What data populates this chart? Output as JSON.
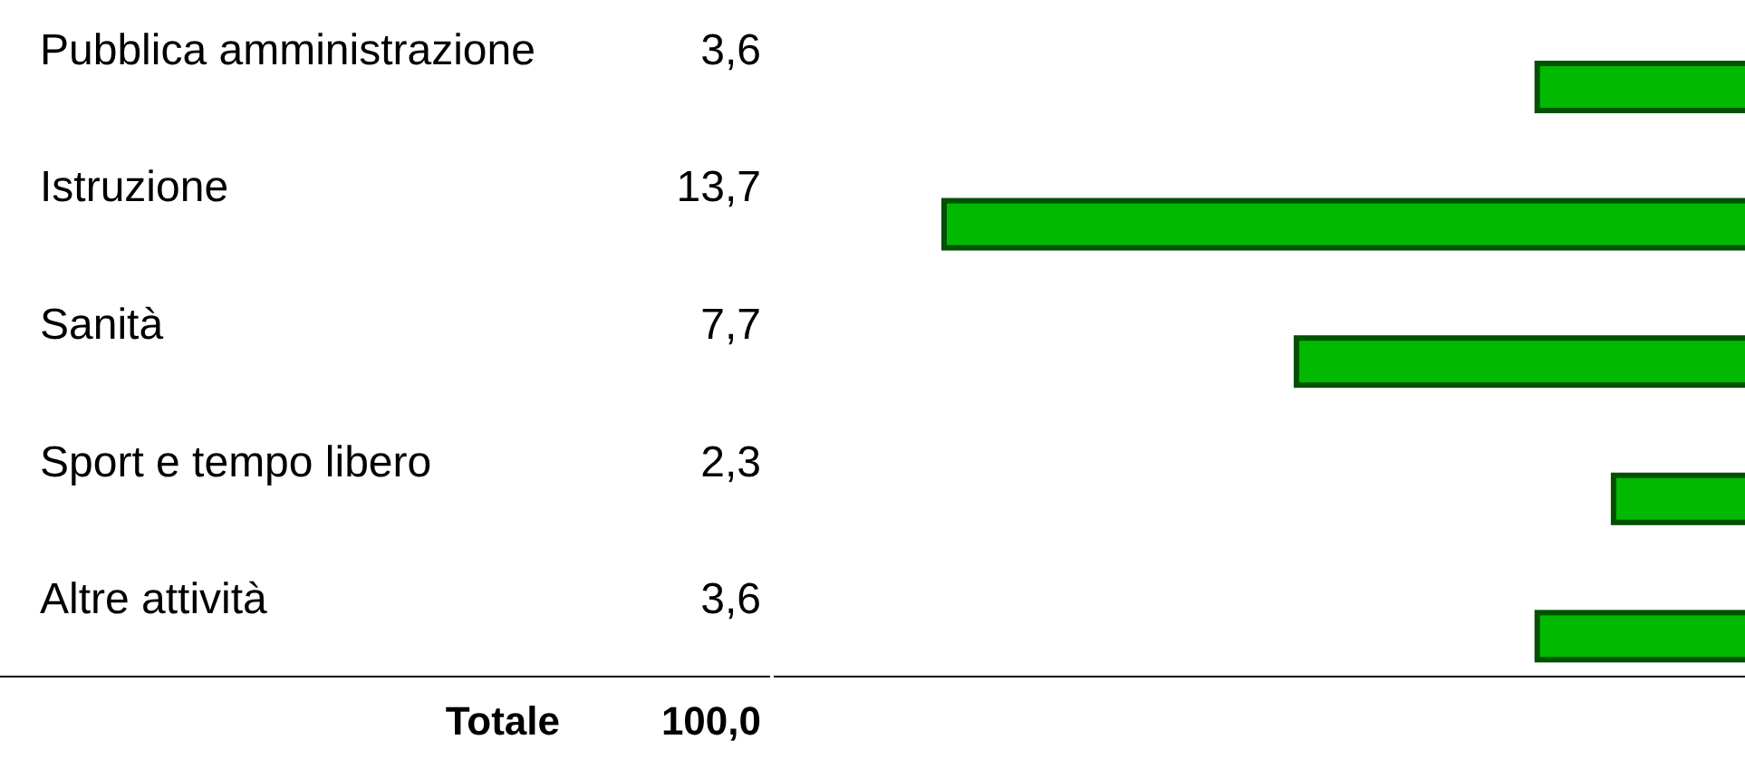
{
  "chart_data": {
    "type": "bar",
    "orientation": "horizontal",
    "categories": [
      "Pubblica amministrazione",
      "Istruzione",
      "Sanità",
      "Sport e tempo libero",
      "Altre attività"
    ],
    "values": [
      3.6,
      13.7,
      7.7,
      2.3,
      3.6
    ],
    "color": "#00b900",
    "value_labels": [
      "3,6",
      "13,7",
      "7,7",
      "2,3",
      "3,6"
    ],
    "annotations": [
      "Totale",
      "100,0"
    ]
  }
}
